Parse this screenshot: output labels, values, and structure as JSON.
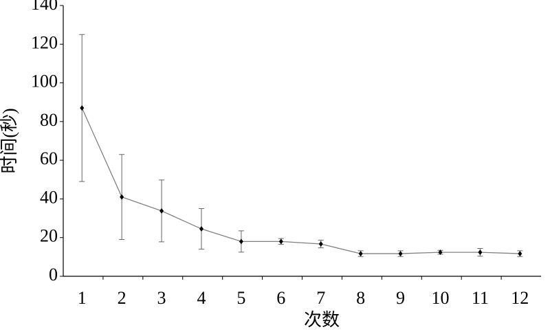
{
  "chart_data": {
    "type": "line",
    "x_label": "次数",
    "y_label": "时间(秒)",
    "categories": [
      "1",
      "2",
      "3",
      "4",
      "5",
      "6",
      "7",
      "8",
      "9",
      "10",
      "11",
      "12"
    ],
    "values": [
      87,
      41,
      33.8,
      24.5,
      18,
      18,
      16.7,
      11.7,
      11.7,
      12.4,
      12.4,
      11.7
    ],
    "errors": [
      38,
      22,
      16,
      10.5,
      5.5,
      1.5,
      2,
      1.5,
      1.5,
      1,
      2,
      1.5
    ],
    "color": "#808080",
    "marker_color": "#000000",
    "ylim": [
      0,
      140
    ],
    "yticks": [
      0,
      20,
      40,
      60,
      80,
      100,
      120,
      140
    ]
  }
}
